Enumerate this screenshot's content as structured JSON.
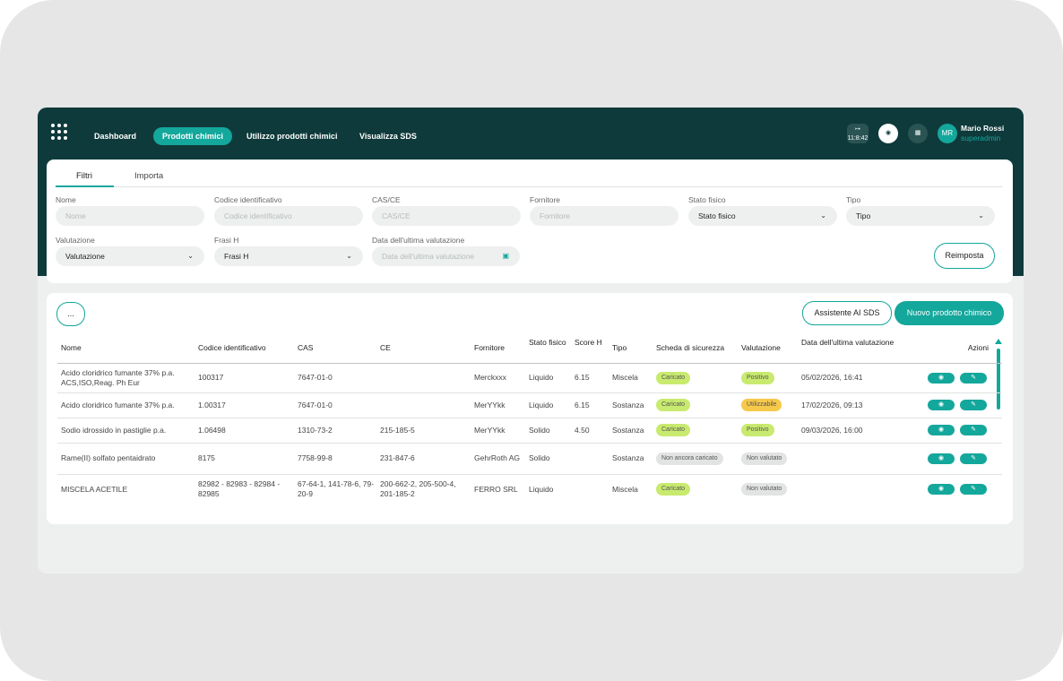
{
  "nav": {
    "items": [
      "Dashboard",
      "Prodotti chimici",
      "Utilizzo prodotti chimici",
      "Visualizza SDS"
    ],
    "clock": "11:8:42",
    "user": {
      "initials": "MR",
      "name": "Mario Rossi",
      "role": "superadmin"
    }
  },
  "tabs": [
    "Filtri",
    "Importa"
  ],
  "filters": [
    {
      "label": "Nome",
      "placeholder": "Nome"
    },
    {
      "label": "Codice identificativo",
      "placeholder": "Codice identificativo"
    },
    {
      "label": "CAS/CE",
      "placeholder": "CAS/CE"
    },
    {
      "label": "Fornitore",
      "placeholder": "Fornitore"
    },
    {
      "label": "Stato fisico",
      "value": "Stato fisico"
    },
    {
      "label": "Tipo",
      "value": "Tipo"
    },
    {
      "label": "Valutazione",
      "value": "Valutazione"
    },
    {
      "label": "Frasi H",
      "value": "Frasi H"
    },
    {
      "label": "Data dell'ultima valutazione",
      "placeholder": "Data dell'ultima valutazione"
    }
  ],
  "reset": "Reimposta",
  "actions": {
    "more": "...",
    "assistant": "Assistente AI SDS",
    "new": "Nuovo prodotto chimico"
  },
  "table": {
    "columns": [
      "Nome",
      "Codice identificativo",
      "CAS",
      "CE",
      "Fornitore",
      "Stato fisico",
      "Score H",
      "Tipo",
      "Scheda di sicurezza",
      "Valutazione",
      "Data dell'ultima valutazione",
      "Azioni"
    ],
    "rows": [
      [
        "Acido cloridrico fumante 37% p.a. ACS,ISO,Reag. Ph Eur",
        "100317",
        "7647-01-0",
        null,
        "Merckxxx",
        "Liquido",
        "6.15",
        "Miscela",
        {
          "text": "Caricato",
          "color": "#c8ea6e"
        },
        {
          "text": "Positivo",
          "color": "#c8ea6e"
        },
        "05/02/2026, 16:41"
      ],
      [
        "Acido cloridrico fumante 37% p.a.",
        "1.00317",
        "7647-01-0",
        null,
        "MerYYkk",
        "Liquido",
        "6.15",
        "Sostanza",
        {
          "text": "Caricato",
          "color": "#c8ea6e"
        },
        {
          "text": "Utilizzabile",
          "color": "#f6c94a"
        },
        "17/02/2026, 09:13"
      ],
      [
        "Sodio idrossido in pastiglie p.a.",
        "1.06498",
        "1310-73-2",
        "215-185-5",
        "MerYYkk",
        "Solido",
        "4.50",
        "Sostanza",
        {
          "text": "Caricato",
          "color": "#c8ea6e"
        },
        {
          "text": "Positivo",
          "color": "#c8ea6e"
        },
        "09/03/2026, 16:00"
      ],
      [
        "Rame(II) solfato pentaidrato",
        "8175",
        "7758-99-8",
        "231-847-6",
        "GehrRoth AG",
        "Solido",
        null,
        "Sostanza",
        {
          "text": "Non ancora caricato",
          "color": "#e2e3e3"
        },
        {
          "text": "Non valutato",
          "color": "#e2e3e3"
        },
        null
      ],
      [
        "MISCELA ACETILE",
        "82982 - 82983 - 82984 - 82985",
        "67-64-1, 141-78-6, 79-20-9",
        "200-662-2, 205-500-4, 201-185-2",
        "FERRO SRL",
        "Liquido",
        null,
        "Miscela",
        {
          "text": "Caricato",
          "color": "#c8ea6e"
        },
        {
          "text": "Non valutato",
          "color": "#e2e3e3"
        },
        null
      ]
    ]
  }
}
